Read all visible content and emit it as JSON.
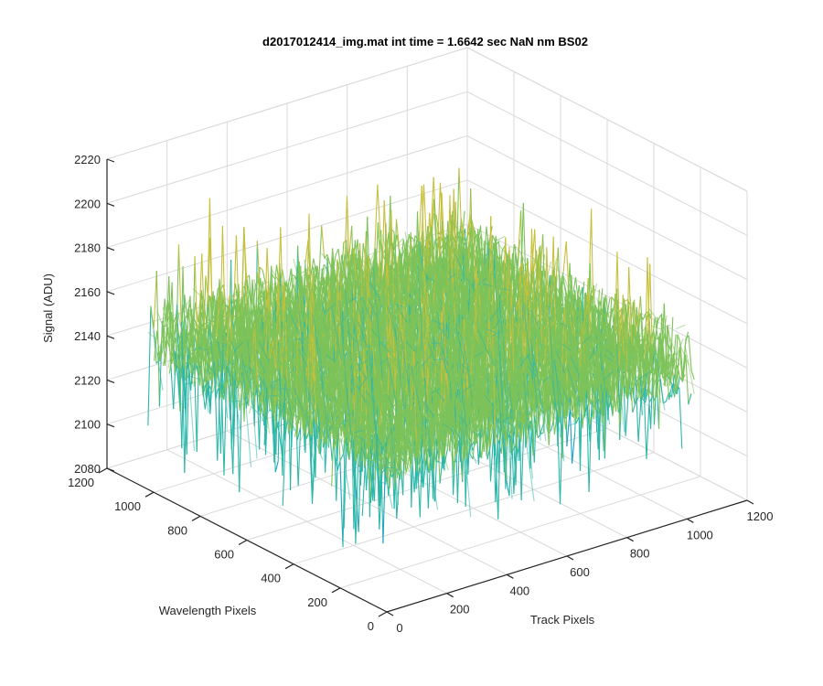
{
  "chart_data": {
    "type": "surface",
    "title": "d2017012414_img.mat int time = 1.6642 sec  NaN nm BS02",
    "xlabel": "Track Pixels",
    "ylabel": "Wavelength Pixels",
    "zlabel": "Signal (ADU)",
    "xlim": [
      0,
      1200
    ],
    "ylim": [
      0,
      1200
    ],
    "zlim": [
      2080,
      2220
    ],
    "xticks": [
      "0",
      "200",
      "400",
      "600",
      "800",
      "1000",
      "1200"
    ],
    "yticks": [
      "0",
      "200",
      "400",
      "600",
      "800",
      "1000",
      "1200"
    ],
    "zticks": [
      "2080",
      "2100",
      "2120",
      "2140",
      "2160",
      "2180",
      "2200",
      "2220"
    ],
    "surface_extent": {
      "x": [
        0,
        1024
      ],
      "y": [
        0,
        1024
      ]
    },
    "signal_mean": 2150,
    "signal_noise_amplitude": 22,
    "signal_peak_max": 2210,
    "signal_trough_min": 2095,
    "grid": true,
    "colormap": [
      "#1ca0c8",
      "#2cb7a8",
      "#7ec35a",
      "#c7c03c",
      "#f2b22e"
    ]
  }
}
